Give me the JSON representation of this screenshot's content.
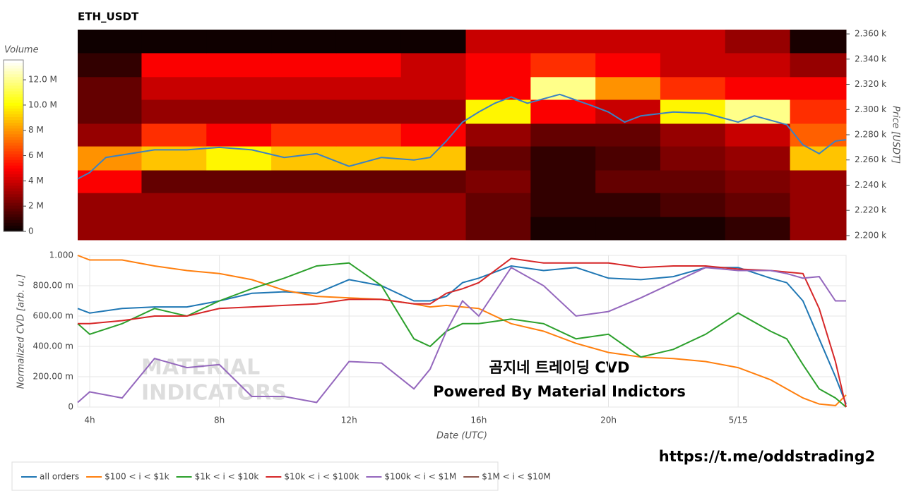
{
  "chart_data": [
    {
      "type": "heatmap",
      "title": "ETH_USDT",
      "ylabel": "Price [USDT]",
      "colorbar_title": "Volume",
      "xlim": [
        3.63,
        27.33
      ],
      "ylim": [
        2196.6,
        2363.4
      ],
      "x_bins": [
        3.63,
        5.6,
        7.6,
        9.6,
        11.6,
        13.6,
        15.6,
        17.6,
        19.6,
        21.6,
        23.6,
        25.6,
        27.33
      ],
      "y_bins": [
        2196.6,
        2215,
        2234,
        2252,
        2271,
        2289,
        2308,
        2326,
        2345,
        2363.4
      ],
      "values": [
        [
          3000000.0,
          3000000.0,
          3000000.0,
          3000000.0,
          3000000.0,
          3000000.0,
          2000000.0,
          500000.0,
          500000.0,
          500000.0,
          1000000.0,
          3000000.0
        ],
        [
          3000000.0,
          3000000.0,
          3000000.0,
          3000000.0,
          3000000.0,
          3000000.0,
          2000000.0,
          1000000.0,
          1000000.0,
          1500000.0,
          2000000.0,
          3000000.0
        ],
        [
          5000000.0,
          2000000.0,
          2000000.0,
          2000000.0,
          2000000.0,
          2000000.0,
          2500000.0,
          1000000.0,
          2000000.0,
          2000000.0,
          2500000.0,
          3000000.0
        ],
        [
          8000000.0,
          9000000.0,
          10000000.0,
          9000000.0,
          9000000.0,
          9000000.0,
          2000000.0,
          1000000.0,
          1500000.0,
          2500000.0,
          3000000.0,
          9000000.0
        ],
        [
          3000000.0,
          6000000.0,
          5000000.0,
          6000000.0,
          6000000.0,
          5000000.0,
          3000000.0,
          2000000.0,
          2000000.0,
          3000000.0,
          4000000.0,
          7000000.0
        ],
        [
          2000000.0,
          3000000.0,
          3000000.0,
          3000000.0,
          3000000.0,
          3000000.0,
          10000000.0,
          5000000.0,
          4000000.0,
          10000000.0,
          12000000.0,
          6000000.0
        ],
        [
          2000000.0,
          4000000.0,
          4000000.0,
          4000000.0,
          4000000.0,
          4000000.0,
          5000000.0,
          12000000.0,
          8000000.0,
          6000000.0,
          5000000.0,
          5000000.0
        ],
        [
          1000000.0,
          5000000.0,
          5000000.0,
          5000000.0,
          5000000.0,
          4000000.0,
          5000000.0,
          6000000.0,
          5000000.0,
          4000000.0,
          4000000.0,
          3000000.0
        ],
        [
          300000.0,
          300000.0,
          300000.0,
          300000.0,
          300000.0,
          300000.0,
          4000000.0,
          4000000.0,
          4000000.0,
          4000000.0,
          3000000.0,
          500000.0
        ]
      ],
      "zlim": [
        0,
        13570000
      ],
      "zticks": [
        0,
        {
          "value": 2000000,
          "label": "2 M"
        },
        {
          "value": 4000000,
          "label": "4 M"
        },
        {
          "value": 6000000,
          "label": "6 M"
        },
        {
          "value": 8000000,
          "label": "8 M"
        },
        {
          "value": 10000000,
          "label": "10.0 M"
        },
        {
          "value": 12000000,
          "label": "12.0 M"
        }
      ],
      "yticks": [
        {
          "value": 2200,
          "label": "2.200 k"
        },
        {
          "value": 2220,
          "label": "2.220 k"
        },
        {
          "value": 2240,
          "label": "2.240 k"
        },
        {
          "value": 2260,
          "label": "2.260 k"
        },
        {
          "value": 2280,
          "label": "2.280 k"
        },
        {
          "value": 2300,
          "label": "2.300 k"
        },
        {
          "value": 2320,
          "label": "2.320 k"
        },
        {
          "value": 2340,
          "label": "2.340 k"
        },
        {
          "value": 2360,
          "label": "2.360 k"
        }
      ],
      "price": {
        "color": "#3b82c4",
        "x": [
          3.63,
          4,
          4.5,
          6,
          7,
          8,
          9,
          10,
          11,
          12,
          13,
          14,
          14.5,
          15,
          15.5,
          16,
          16.5,
          17,
          17.5,
          18.5,
          19.5,
          20,
          20.5,
          21,
          22,
          23,
          24,
          24.5,
          25.5,
          26,
          26.5,
          27,
          27.33
        ],
        "values": [
          2245,
          2250,
          2262,
          2268,
          2268,
          2270,
          2268,
          2262,
          2265,
          2255,
          2262,
          2260,
          2262,
          2275,
          2290,
          2298,
          2305,
          2310,
          2305,
          2312,
          2303,
          2298,
          2290,
          2295,
          2298,
          2297,
          2290,
          2295,
          2288,
          2272,
          2265,
          2275,
          2276
        ]
      }
    },
    {
      "type": "line",
      "xlabel": "Date (UTC)",
      "ylabel": "Normalized CVD [arb. u.]",
      "xlim": [
        3.63,
        27.33
      ],
      "ylim": [
        0,
        1
      ],
      "xticks": [
        {
          "value": 4,
          "label": "4h"
        },
        {
          "value": 8,
          "label": "8h"
        },
        {
          "value": 12,
          "label": "12h"
        },
        {
          "value": 16,
          "label": "16h"
        },
        {
          "value": 20,
          "label": "20h"
        },
        {
          "value": 24,
          "label": "5/15"
        }
      ],
      "yticks": [
        0,
        {
          "value": 0.2,
          "label": "200.00 m"
        },
        {
          "value": 0.4,
          "label": "400.00 m"
        },
        {
          "value": 0.6,
          "label": "600.00 m"
        },
        {
          "value": 0.8,
          "label": "800.00 m"
        },
        {
          "value": 1,
          "label": "1.000"
        }
      ],
      "grid": true,
      "x": [
        3.63,
        4,
        5,
        6,
        7,
        8,
        9,
        10,
        11,
        12,
        13,
        14,
        14.5,
        15,
        15.5,
        16,
        17,
        18,
        19,
        20,
        21,
        22,
        23,
        24,
        25,
        25.5,
        26,
        26.5,
        27,
        27.33
      ],
      "series": [
        {
          "name": "all orders",
          "color": "#1f77b4",
          "values": [
            0.65,
            0.62,
            0.65,
            0.66,
            0.66,
            0.7,
            0.75,
            0.76,
            0.75,
            0.84,
            0.8,
            0.7,
            0.7,
            0.73,
            0.82,
            0.85,
            0.93,
            0.9,
            0.92,
            0.85,
            0.84,
            0.86,
            0.92,
            0.92,
            0.85,
            0.82,
            0.7,
            0.45,
            0.2,
            0.02
          ]
        },
        {
          "name": "$100 < i < $1k",
          "color": "#ff7f0e",
          "values": [
            1.0,
            0.97,
            0.97,
            0.93,
            0.9,
            0.88,
            0.84,
            0.77,
            0.73,
            0.72,
            0.71,
            0.68,
            0.66,
            0.67,
            0.66,
            0.65,
            0.55,
            0.5,
            0.42,
            0.36,
            0.33,
            0.32,
            0.3,
            0.26,
            0.18,
            0.12,
            0.06,
            0.02,
            0.01,
            0.08
          ]
        },
        {
          "name": "$1k < i < $10k",
          "color": "#2ca02c",
          "values": [
            0.55,
            0.48,
            0.55,
            0.65,
            0.6,
            0.7,
            0.78,
            0.85,
            0.93,
            0.95,
            0.8,
            0.45,
            0.4,
            0.5,
            0.55,
            0.55,
            0.58,
            0.55,
            0.45,
            0.48,
            0.33,
            0.38,
            0.48,
            0.62,
            0.5,
            0.45,
            0.28,
            0.12,
            0.06,
            0.0
          ]
        },
        {
          "name": "$10k < i < $100k",
          "color": "#d62728",
          "values": [
            0.55,
            0.55,
            0.57,
            0.6,
            0.6,
            0.65,
            0.66,
            0.67,
            0.68,
            0.71,
            0.71,
            0.68,
            0.68,
            0.75,
            0.78,
            0.82,
            0.98,
            0.95,
            0.95,
            0.95,
            0.92,
            0.93,
            0.93,
            0.91,
            0.9,
            0.89,
            0.88,
            0.65,
            0.3,
            0.0
          ]
        },
        {
          "name": "$100k < i < $1M",
          "color": "#9467bd",
          "values": [
            0.03,
            0.1,
            0.06,
            0.32,
            0.26,
            0.28,
            0.07,
            0.07,
            0.03,
            0.3,
            0.29,
            0.12,
            0.25,
            0.5,
            0.7,
            0.6,
            0.92,
            0.8,
            0.6,
            0.63,
            0.72,
            0.82,
            0.92,
            0.9,
            0.9,
            0.88,
            0.85,
            0.86,
            0.7,
            0.7
          ]
        },
        {
          "name": "$1M < i < $10M",
          "color": "#8c564b",
          "values": [
            null,
            null,
            null,
            null,
            null,
            null,
            null,
            null,
            null,
            null,
            null,
            null,
            null,
            null,
            null,
            null,
            null,
            null,
            null,
            null,
            null,
            null,
            null,
            null,
            null,
            null,
            null,
            null,
            null,
            null
          ]
        }
      ],
      "watermark": [
        "MATERIAL",
        "INDICATORS"
      ],
      "annotations": [
        "곰지네 트레이딩 CVD",
        "Powered By Material Indictors"
      ]
    }
  ],
  "footer": "https://t.me/oddstrading2"
}
